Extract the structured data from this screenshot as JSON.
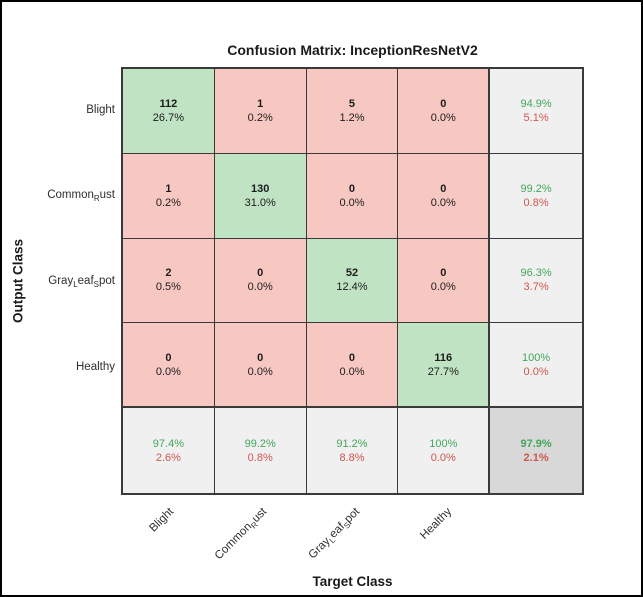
{
  "chart_data": {
    "type": "heatmap",
    "subtype": "confusion-matrix",
    "title": "Confusion Matrix: InceptionResNetV2",
    "xlabel": "Target Class",
    "ylabel": "Output Class",
    "classes": [
      "Blight",
      "Common_Rust",
      "Gray_Leaf_Spot",
      "Healthy"
    ],
    "label_note": "underscore makes the following letter a subscript (MATLAB TeX style)",
    "counts": [
      [
        112,
        1,
        5,
        0
      ],
      [
        1,
        130,
        0,
        0
      ],
      [
        2,
        0,
        52,
        0
      ],
      [
        0,
        0,
        0,
        116
      ]
    ],
    "cell_percents": [
      [
        "26.7%",
        "0.2%",
        "1.2%",
        "0.0%"
      ],
      [
        "0.2%",
        "31.0%",
        "0.0%",
        "0.0%"
      ],
      [
        "0.5%",
        "0.0%",
        "12.4%",
        "0.0%"
      ],
      [
        "0.0%",
        "0.0%",
        "0.0%",
        "27.7%"
      ]
    ],
    "row_summary": [
      {
        "green": "94.9%",
        "red": "5.1%"
      },
      {
        "green": "99.2%",
        "red": "0.8%"
      },
      {
        "green": "96.3%",
        "red": "3.7%"
      },
      {
        "green": "100%",
        "red": "0.0%"
      }
    ],
    "col_summary": [
      {
        "green": "97.4%",
        "red": "2.6%"
      },
      {
        "green": "99.2%",
        "red": "0.8%"
      },
      {
        "green": "91.2%",
        "red": "8.8%"
      },
      {
        "green": "100%",
        "red": "0.0%"
      }
    ],
    "overall": {
      "green": "97.9%",
      "red": "2.1%"
    },
    "colors": {
      "diagonal_cell": "#c0e3c3",
      "off_diagonal_cell": "#f7c7c2",
      "summary_cell": "#f0f0f0",
      "overall_cell": "#d8d8d8",
      "positive_text": "#44a65c",
      "negative_text": "#cf5750",
      "grid_line": "#3a3a3a"
    }
  }
}
